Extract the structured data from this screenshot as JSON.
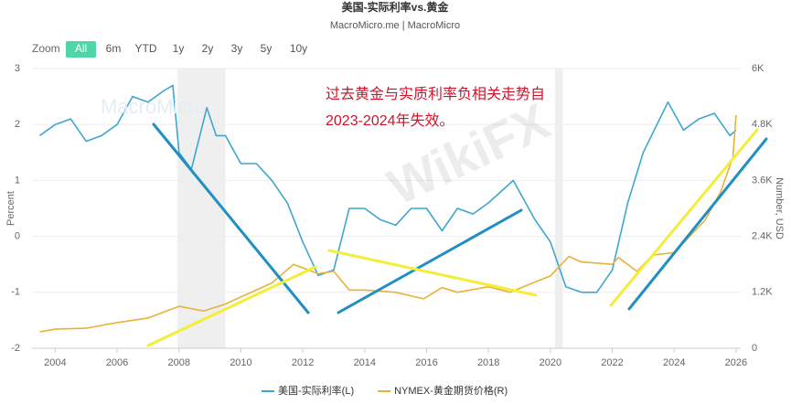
{
  "chart_data": {
    "type": "line",
    "title": "美国-实际利率vs.黄金",
    "subtitle": "MacroMicro.me | MacroMicro",
    "zoom_label": "Zoom",
    "zoom_buttons": [
      "All",
      "6m",
      "YTD",
      "1y",
      "2y",
      "3y",
      "5y",
      "10y"
    ],
    "zoom_active": "All",
    "annotation": [
      "过去黄金与实质利率负相关走势自",
      "2023-2024年失效。"
    ],
    "watermarks": [
      "MacroMicro",
      "WikiFX"
    ],
    "y_label": "Percent",
    "y2_label": "Number, USD",
    "xlim": [
      2003.25,
      2026.15
    ],
    "xticks": [
      2004,
      2006,
      2008,
      2010,
      2012,
      2014,
      2016,
      2018,
      2020,
      2022,
      2024,
      2026
    ],
    "ylim": [
      -2,
      3
    ],
    "yticks": [
      -2,
      -1,
      0,
      1,
      2,
      3
    ],
    "y2lim": [
      0,
      6000
    ],
    "y2ticks": [
      0,
      {
        "value": 1200,
        "label": "1.2K"
      },
      {
        "value": 2400,
        "label": "2.4K"
      },
      {
        "value": 3600,
        "label": "3.6K"
      },
      {
        "value": 4800,
        "label": "4.8K"
      },
      {
        "value": 6000,
        "label": "6K"
      }
    ],
    "grid": true,
    "shaded_ranges": [
      [
        2007.95,
        2009.5
      ],
      [
        2020.15,
        2020.4
      ]
    ],
    "series": [
      {
        "name": "美国-实际利率(L)",
        "color": "#3ea6cf",
        "axis": "y",
        "x": [
          2003.5,
          2004,
          2004.5,
          2005,
          2005.5,
          2006,
          2006.5,
          2007,
          2007.5,
          2007.8,
          2008,
          2008.4,
          2008.9,
          2009.2,
          2009.5,
          2010,
          2010.5,
          2011,
          2011.5,
          2012,
          2012.5,
          2013,
          2013.5,
          2014,
          2014.5,
          2015,
          2015.5,
          2016,
          2016.5,
          2017,
          2017.5,
          2018,
          2018.8,
          2019.5,
          2020,
          2020.5,
          2021,
          2021.5,
          2022,
          2022.5,
          2023,
          2023.8,
          2024.3,
          2024.8,
          2025.3,
          2025.8,
          2026
        ],
        "values": [
          1.8,
          2.0,
          2.1,
          1.7,
          1.8,
          2.0,
          2.5,
          2.4,
          2.6,
          2.7,
          1.5,
          1.2,
          2.3,
          1.8,
          1.8,
          1.3,
          1.3,
          1.0,
          0.6,
          -0.1,
          -0.7,
          -0.6,
          0.5,
          0.5,
          0.3,
          0.2,
          0.5,
          0.5,
          0.1,
          0.5,
          0.4,
          0.6,
          1.0,
          0.3,
          -0.1,
          -0.9,
          -1.0,
          -1.0,
          -0.6,
          0.6,
          1.5,
          2.4,
          1.9,
          2.1,
          2.2,
          1.8,
          1.9
        ]
      },
      {
        "name": "NYMEX-黄金期货价格(R)",
        "color": "#e8b23a",
        "axis": "y2",
        "x": [
          2003.5,
          2004,
          2005,
          2006,
          2007,
          2008,
          2008.8,
          2009.5,
          2010,
          2011,
          2011.7,
          2012.5,
          2013,
          2013.5,
          2014,
          2015,
          2015.9,
          2016.5,
          2017,
          2018,
          2018.7,
          2019.5,
          2020,
          2020.6,
          2021,
          2022,
          2022.2,
          2022.8,
          2023.3,
          2024,
          2024.5,
          2025,
          2025.5,
          2025.9,
          2026
        ],
        "values": [
          350,
          410,
          430,
          550,
          650,
          900,
          800,
          950,
          1100,
          1400,
          1800,
          1600,
          1650,
          1250,
          1250,
          1200,
          1060,
          1300,
          1200,
          1320,
          1200,
          1420,
          1550,
          1970,
          1850,
          1800,
          1950,
          1650,
          2000,
          2050,
          2400,
          2750,
          3350,
          4100,
          5000
        ]
      }
    ]
  }
}
